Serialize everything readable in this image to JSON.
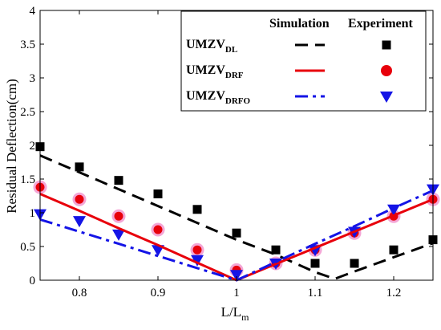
{
  "chart_data": {
    "type": "line",
    "xlabel": "L/L",
    "xlabel_sub": "m",
    "ylabel": "Residual Deflection(cm)",
    "xlim": [
      0.75,
      1.25
    ],
    "ylim": [
      0,
      4
    ],
    "x_ticks": [
      "0.8",
      "0.9",
      "1",
      "1.1",
      "1.2"
    ],
    "x_tick_values": [
      0.8,
      0.9,
      1.0,
      1.1,
      1.2
    ],
    "y_ticks": [
      "0",
      "0.5",
      "1",
      "1.5",
      "2",
      "2.5",
      "3",
      "3.5",
      "4"
    ],
    "y_tick_values": [
      0,
      0.5,
      1,
      1.5,
      2,
      2.5,
      3,
      3.5,
      4
    ],
    "grid": false,
    "legend": {
      "placement": "top-right",
      "header_simulation": "Simulation",
      "header_experiment": "Experiment"
    },
    "series": [
      {
        "name": "UMZV",
        "name_sub": "DL",
        "color": "#000000",
        "line_style": "dashed",
        "marker": "square",
        "simulation": {
          "x": [
            0.75,
            0.8,
            0.85,
            0.9,
            0.95,
            1.0,
            1.05,
            1.1,
            1.125,
            1.15,
            1.2,
            1.25
          ],
          "y": [
            1.85,
            1.6,
            1.35,
            1.1,
            0.85,
            0.6,
            0.38,
            0.12,
            0.02,
            0.13,
            0.34,
            0.55
          ]
        },
        "experiment": {
          "x": [
            0.75,
            0.8,
            0.85,
            0.9,
            0.95,
            1.0,
            1.05,
            1.1,
            1.15,
            1.2,
            1.25
          ],
          "y": [
            1.98,
            1.68,
            1.48,
            1.28,
            1.05,
            0.7,
            0.45,
            0.25,
            0.25,
            0.45,
            0.6
          ]
        }
      },
      {
        "name": "UMZV",
        "name_sub": "DRF",
        "color": "#e8000b",
        "line_style": "solid",
        "marker": "circle",
        "simulation": {
          "x": [
            0.75,
            0.8,
            0.85,
            0.9,
            0.95,
            1.0,
            1.05,
            1.1,
            1.15,
            1.2,
            1.25
          ],
          "y": [
            1.28,
            1.03,
            0.77,
            0.52,
            0.26,
            0.0,
            0.24,
            0.48,
            0.72,
            0.96,
            1.2
          ]
        },
        "experiment": {
          "x": [
            0.75,
            0.8,
            0.85,
            0.9,
            0.95,
            1.0,
            1.05,
            1.1,
            1.15,
            1.2,
            1.25
          ],
          "y": [
            1.38,
            1.2,
            0.95,
            0.75,
            0.45,
            0.15,
            0.25,
            0.45,
            0.7,
            0.95,
            1.2
          ]
        }
      },
      {
        "name": "UMZV",
        "name_sub": "DRFO",
        "color": "#1414e6",
        "line_style": "dashdot",
        "marker": "triangle-down",
        "simulation": {
          "x": [
            0.75,
            0.8,
            0.85,
            0.9,
            0.95,
            1.0,
            1.05,
            1.1,
            1.15,
            1.2,
            1.25
          ],
          "y": [
            0.9,
            0.72,
            0.54,
            0.36,
            0.18,
            0.0,
            0.27,
            0.54,
            0.8,
            1.07,
            1.33
          ]
        },
        "experiment": {
          "x": [
            0.75,
            0.8,
            0.85,
            0.9,
            0.95,
            1.0,
            1.05,
            1.1,
            1.15,
            1.2,
            1.25
          ],
          "y": [
            0.98,
            0.88,
            0.68,
            0.45,
            0.3,
            0.08,
            0.25,
            0.45,
            0.72,
            1.05,
            1.35
          ]
        }
      }
    ]
  }
}
